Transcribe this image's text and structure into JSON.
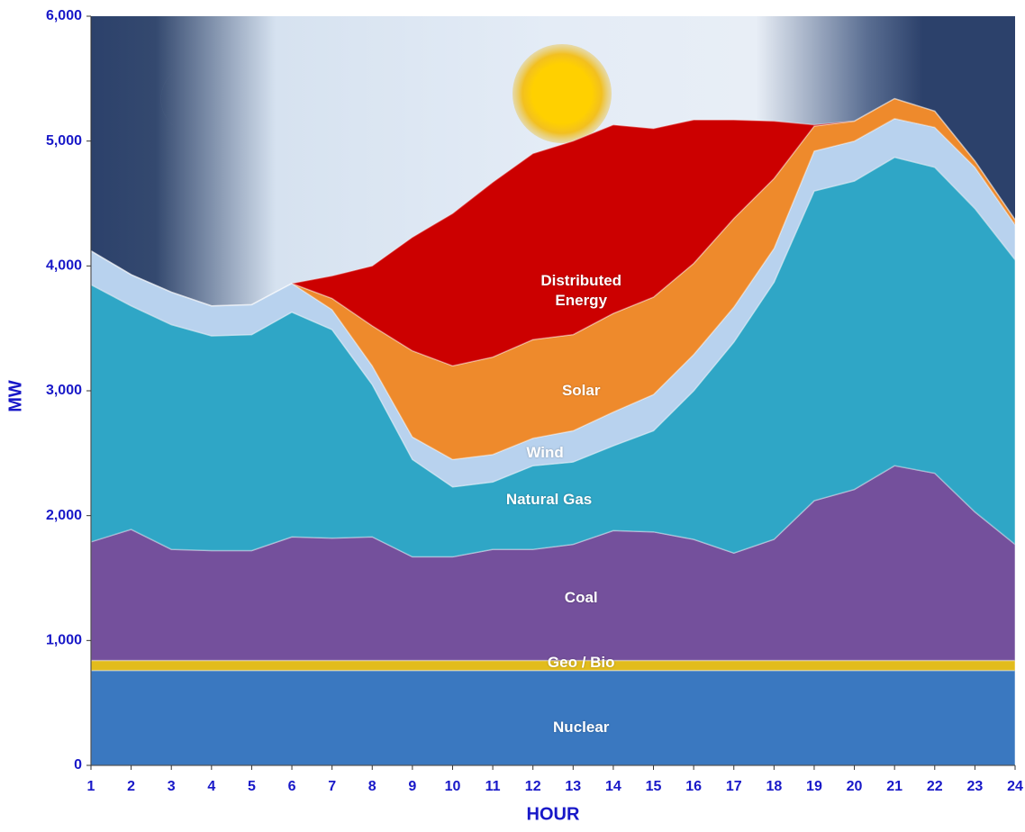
{
  "chart_data": {
    "type": "stacked_area",
    "x_label": "HOUR",
    "y_label": "MW",
    "x": [
      1,
      2,
      3,
      4,
      5,
      6,
      7,
      8,
      9,
      10,
      11,
      12,
      13,
      14,
      15,
      16,
      17,
      18,
      19,
      20,
      21,
      22,
      23,
      24
    ],
    "xlim": [
      1,
      24
    ],
    "ylim": [
      0,
      6000
    ],
    "yticks": [
      0,
      {
        "value": 1000,
        "label": "1,000"
      },
      {
        "value": 2000,
        "label": "2,000"
      },
      {
        "value": 3000,
        "label": "3,000"
      },
      {
        "value": 4000,
        "label": "4,000"
      },
      {
        "value": 5000,
        "label": "5,000"
      },
      {
        "value": 6000,
        "label": "6,000"
      }
    ],
    "series": [
      {
        "name": "Nuclear",
        "color": "#3a78c0",
        "values": [
          760,
          760,
          760,
          760,
          760,
          760,
          760,
          760,
          760,
          760,
          760,
          760,
          760,
          760,
          760,
          760,
          760,
          760,
          760,
          760,
          760,
          760,
          760,
          760
        ]
      },
      {
        "name": "Geo / Bio",
        "color": "#e2bc1c",
        "values": [
          80,
          80,
          80,
          80,
          80,
          80,
          80,
          80,
          80,
          80,
          80,
          80,
          80,
          80,
          80,
          80,
          80,
          80,
          80,
          80,
          80,
          80,
          80,
          80
        ]
      },
      {
        "name": "Coal",
        "color": "#74509c",
        "values": [
          950,
          1050,
          890,
          880,
          880,
          990,
          980,
          990,
          830,
          830,
          890,
          890,
          930,
          1040,
          1030,
          970,
          860,
          970,
          1280,
          1370,
          1560,
          1500,
          1190,
          930
        ]
      },
      {
        "name": "Natural Gas",
        "color": "#2fa6c6",
        "values": [
          2060,
          1790,
          1800,
          1720,
          1730,
          1800,
          1670,
          1220,
          780,
          560,
          540,
          670,
          660,
          680,
          810,
          1190,
          1690,
          2060,
          2480,
          2470,
          2470,
          2450,
          2430,
          2280
        ]
      },
      {
        "name": "Wind",
        "color": "#b8d2ee",
        "values": [
          270,
          250,
          260,
          240,
          240,
          230,
          160,
          150,
          180,
          220,
          220,
          220,
          250,
          270,
          290,
          290,
          280,
          270,
          320,
          320,
          310,
          320,
          330,
          280
        ]
      },
      {
        "name": "Solar",
        "color": "#ee8a2c",
        "values": [
          0,
          0,
          0,
          0,
          0,
          0,
          90,
          320,
          690,
          750,
          780,
          790,
          770,
          790,
          780,
          730,
          710,
          560,
          200,
          160,
          160,
          130,
          50,
          40
        ]
      },
      {
        "name": "Distributed Energy",
        "color": "#cc0000",
        "values": [
          0,
          0,
          0,
          0,
          0,
          0,
          180,
          480,
          910,
          1220,
          1400,
          1490,
          1550,
          1510,
          1350,
          1150,
          790,
          460,
          10,
          0,
          0,
          0,
          0,
          0
        ]
      }
    ]
  }
}
